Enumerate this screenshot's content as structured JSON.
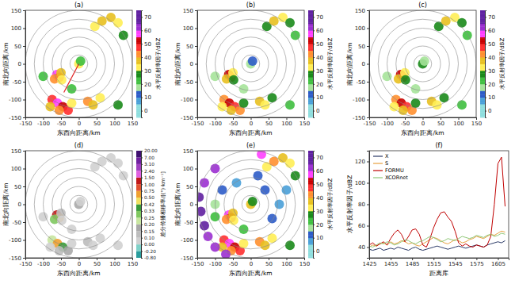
{
  "chart_data": [
    {
      "type": "ppi",
      "title": "(a)",
      "x_label": "东西向距离/km",
      "y_label": "南北向距离/km",
      "xlim": [
        -150,
        150
      ],
      "ylim": [
        -150,
        150
      ],
      "xticks": [
        -150,
        -100,
        -50,
        0,
        50,
        100,
        150
      ],
      "yticks": [
        -150,
        -100,
        -50,
        0,
        50,
        100,
        150
      ],
      "rings": [
        25,
        50,
        75,
        100,
        125,
        150
      ],
      "cells": {
        "x": [
          -62,
          -55,
          -68,
          -50,
          -48,
          -75,
          -60,
          -45,
          -30,
          -55,
          -80,
          -20,
          25,
          40,
          60,
          110,
          45,
          65,
          90,
          110,
          125,
          0,
          5,
          -20,
          -100
        ],
        "y": [
          -30,
          -38,
          -42,
          -25,
          -45,
          -100,
          -110,
          -120,
          -130,
          -130,
          -120,
          -110,
          -105,
          -115,
          -95,
          -115,
          105,
          120,
          130,
          115,
          80,
          0,
          8,
          -70,
          -35
        ],
        "values": [
          55,
          48,
          40,
          35,
          30,
          45,
          55,
          50,
          45,
          40,
          35,
          30,
          40,
          35,
          30,
          25,
          30,
          38,
          35,
          30,
          25,
          30,
          20,
          20,
          20
        ]
      },
      "profile_line": {
        "x": [
          0,
          -42
        ],
        "y": [
          0,
          -80
        ],
        "color": "#e02020"
      },
      "colorbar": {
        "label": "水平反射率因子/dBZ",
        "range": [
          -5,
          75
        ],
        "ticks": [
          0,
          10,
          20,
          30,
          40,
          50,
          60,
          70
        ]
      }
    },
    {
      "type": "ppi",
      "title": "(b)",
      "x_label": "东西向距离/km",
      "y_label": "南北向距离/km",
      "xlim": [
        -150,
        150
      ],
      "ylim": [
        -150,
        150
      ],
      "xticks": [
        -150,
        -100,
        -50,
        0,
        50,
        100,
        150
      ],
      "yticks": [
        -150,
        -100,
        -50,
        0,
        50,
        100,
        150
      ],
      "rings": [
        25,
        50,
        75,
        100,
        125,
        150
      ],
      "cells": {
        "x": [
          -62,
          -55,
          -68,
          -50,
          -48,
          -75,
          -60,
          -45,
          -30,
          -55,
          -80,
          -20,
          25,
          40,
          60,
          110,
          45,
          65,
          90,
          110,
          125,
          0,
          5,
          -20,
          -100
        ],
        "y": [
          -30,
          -38,
          -42,
          -25,
          -45,
          -100,
          -110,
          -120,
          -130,
          -130,
          -120,
          -110,
          -105,
          -115,
          -95,
          -115,
          105,
          120,
          130,
          115,
          80,
          0,
          8,
          -70,
          -35
        ],
        "values": [
          52,
          46,
          38,
          33,
          28,
          43,
          52,
          48,
          42,
          38,
          33,
          28,
          38,
          33,
          28,
          22,
          28,
          36,
          33,
          28,
          22,
          18,
          12,
          18,
          18
        ]
      },
      "colorbar": {
        "label": "水平反射率因子/dBZ",
        "range": [
          -5,
          75
        ],
        "ticks": [
          0,
          10,
          20,
          30,
          40,
          50,
          60,
          70
        ]
      }
    },
    {
      "type": "ppi",
      "title": "(c)",
      "x_label": "东西向距离/km",
      "y_label": "南北向距离/km",
      "xlim": [
        -150,
        150
      ],
      "ylim": [
        -150,
        150
      ],
      "xticks": [
        -150,
        -100,
        -50,
        0,
        50,
        100,
        150
      ],
      "yticks": [
        -150,
        -100,
        -50,
        0,
        50,
        100,
        150
      ],
      "rings": [
        25,
        50,
        75,
        100,
        125,
        150
      ],
      "cells": {
        "x": [
          -62,
          -55,
          -68,
          -50,
          -48,
          -75,
          -60,
          -45,
          -30,
          -55,
          -80,
          -20,
          25,
          40,
          60,
          110,
          45,
          65,
          90,
          110,
          125,
          0,
          5,
          -20,
          -100
        ],
        "y": [
          -30,
          -38,
          -42,
          -25,
          -45,
          -100,
          -110,
          -120,
          -130,
          -130,
          -120,
          -110,
          -105,
          -115,
          -95,
          -115,
          105,
          120,
          130,
          115,
          80,
          0,
          8,
          -70,
          -35
        ],
        "values": [
          53,
          47,
          39,
          34,
          29,
          44,
          54,
          49,
          44,
          39,
          34,
          29,
          39,
          34,
          29,
          24,
          29,
          37,
          34,
          29,
          24,
          25,
          15,
          19,
          19
        ]
      },
      "colorbar": {
        "label": "水平反射率因子/dBZ",
        "range": [
          -5,
          75
        ],
        "ticks": [
          0,
          10,
          20,
          30,
          40,
          50,
          60,
          70
        ]
      }
    },
    {
      "type": "ppi",
      "title": "(d)",
      "x_label": "东西向距离/km",
      "y_label": "南北向距离/km",
      "xlim": [
        -150,
        150
      ],
      "ylim": [
        -150,
        150
      ],
      "xticks": [
        -150,
        -100,
        -50,
        0,
        50,
        100,
        150
      ],
      "yticks": [
        -150,
        -100,
        -50,
        0,
        50,
        100,
        150
      ],
      "rings": [
        25,
        50,
        75,
        100,
        125,
        150
      ],
      "cells": {
        "x": [
          -62,
          -55,
          -68,
          -50,
          -48,
          -75,
          -60,
          -45,
          -30,
          -55,
          -80,
          -20,
          25,
          40,
          60,
          110,
          45,
          65,
          90,
          110,
          125,
          0,
          5,
          -20,
          -100
        ],
        "y": [
          -30,
          -38,
          -42,
          -25,
          -45,
          -100,
          -110,
          -120,
          -130,
          -130,
          -120,
          -110,
          -105,
          -115,
          -95,
          -115,
          105,
          120,
          130,
          115,
          80,
          0,
          8,
          -70,
          -35
        ],
        "values": [
          1.2,
          0.6,
          0.3,
          0.12,
          0.08,
          0.2,
          0.55,
          0.35,
          0.18,
          0.1,
          0.06,
          0.04,
          0.12,
          0.08,
          0.05,
          0.02,
          0.06,
          0.09,
          0.07,
          0.05,
          0.03,
          0.15,
          0.01,
          0.04,
          0.03
        ]
      },
      "colorbar": {
        "label": "差分传播相移率/[(°)·km⁻¹]",
        "ticks": [
          {
            "value": -0.8,
            "label": "-0.80"
          },
          {
            "value": -0.2,
            "label": "-0.20"
          },
          {
            "value": 0,
            "label": "0.00"
          },
          {
            "value": 0.1,
            "label": "0.10"
          },
          {
            "value": 0.15,
            "label": "0.15"
          },
          {
            "value": 0.2,
            "label": "0.20"
          },
          {
            "value": 0.25,
            "label": "0.25"
          },
          {
            "value": 0.33,
            "label": "0.33"
          },
          {
            "value": 0.42,
            "label": "0.42"
          },
          {
            "value": 0.5,
            "label": "0.50"
          },
          {
            "value": 0.75,
            "label": "0.75"
          },
          {
            "value": 1,
            "label": "1.00"
          },
          {
            "value": 1.5,
            "label": "1.50"
          },
          {
            "value": 2.4,
            "label": "2.40"
          },
          {
            "value": 3.1,
            "label": "3.10"
          },
          {
            "value": 7,
            "label": "7.00"
          },
          {
            "value": 20,
            "label": "20.00"
          }
        ]
      }
    },
    {
      "type": "ppi",
      "title": "(e)",
      "x_label": "东西向距离/km",
      "y_label": "南北向距离/km",
      "xlim": [
        -150,
        150
      ],
      "ylim": [
        -150,
        150
      ],
      "xticks": [
        -150,
        -100,
        -50,
        0,
        50,
        100,
        150
      ],
      "yticks": [
        -150,
        -100,
        -50,
        0,
        50,
        100,
        150
      ],
      "rings": [
        25,
        50,
        75,
        100,
        125,
        150
      ],
      "cells": {
        "x": [
          -62,
          -55,
          -68,
          -50,
          -48,
          -75,
          -60,
          -45,
          -30,
          -55,
          -80,
          -20,
          25,
          40,
          60,
          110,
          45,
          65,
          90,
          110,
          125,
          0,
          5,
          -20,
          -100,
          -140,
          -130,
          -120,
          -100,
          -70,
          -145,
          -130,
          -100,
          30,
          -80,
          -40,
          40,
          80,
          60,
          -100,
          20,
          100
        ],
        "y": [
          -30,
          -38,
          -42,
          -25,
          -45,
          -100,
          -110,
          -120,
          -130,
          -130,
          -120,
          -110,
          -105,
          -115,
          -95,
          -115,
          105,
          120,
          130,
          115,
          80,
          0,
          8,
          -70,
          -35,
          -20,
          -60,
          -90,
          -120,
          -140,
          20,
          60,
          100,
          140,
          40,
          60,
          40,
          0,
          -40,
          0,
          80,
          40
        ],
        "values": [
          58,
          50,
          42,
          36,
          32,
          48,
          58,
          52,
          46,
          42,
          36,
          32,
          42,
          36,
          32,
          28,
          32,
          40,
          36,
          32,
          28,
          35,
          25,
          22,
          22,
          65,
          65,
          60,
          62,
          60,
          65,
          60,
          60,
          55,
          10,
          5,
          10,
          5,
          10,
          15,
          10,
          5
        ]
      },
      "colorbar": {
        "label": "水平反射率因子/dBZ",
        "range": [
          -5,
          75
        ],
        "ticks": [
          0,
          10,
          20,
          30,
          40,
          50,
          60,
          70
        ]
      }
    },
    {
      "type": "line",
      "title": "(f)",
      "x_label": "距离库",
      "y_label": "水平反射率因子/dBZ",
      "xlim": [
        1425,
        1620
      ],
      "ylim": [
        30,
        130
      ],
      "xticks": [
        1425,
        1455,
        1485,
        1515,
        1545,
        1575,
        1605
      ],
      "yticks": [
        40,
        60,
        80,
        100,
        120
      ],
      "legend": "upper left",
      "x": [
        1425,
        1430,
        1435,
        1440,
        1445,
        1450,
        1455,
        1460,
        1465,
        1470,
        1475,
        1480,
        1485,
        1490,
        1495,
        1500,
        1505,
        1510,
        1515,
        1520,
        1525,
        1530,
        1535,
        1540,
        1545,
        1550,
        1555,
        1560,
        1565,
        1570,
        1575,
        1580,
        1585,
        1590,
        1595,
        1600,
        1605,
        1610,
        1615
      ],
      "series": [
        {
          "name": "X",
          "color": "#2b3a67",
          "values": [
            38,
            37,
            38,
            39,
            37,
            38,
            39,
            38,
            40,
            39,
            38,
            37,
            39,
            40,
            38,
            37,
            38,
            39,
            40,
            41,
            40,
            39,
            38,
            39,
            40,
            41,
            40,
            39,
            40,
            41,
            42,
            41,
            40,
            42,
            43,
            44,
            45,
            44,
            46
          ]
        },
        {
          "name": "S",
          "color": "#e8a040",
          "values": [
            40,
            42,
            41,
            43,
            44,
            42,
            45,
            43,
            44,
            46,
            45,
            43,
            44,
            42,
            41,
            43,
            45,
            47,
            49,
            48,
            46,
            44,
            43,
            45,
            47,
            46,
            44,
            45,
            47,
            48,
            50,
            49,
            48,
            50,
            52,
            51,
            53,
            55,
            54
          ]
        },
        {
          "name": "FORMU",
          "color": "#c00000",
          "values": [
            42,
            44,
            41,
            43,
            45,
            42,
            48,
            53,
            56,
            52,
            45,
            50,
            56,
            57,
            52,
            42,
            40,
            48,
            58,
            66,
            72,
            73,
            68,
            64,
            55,
            44,
            41,
            43,
            41,
            40,
            42,
            41,
            40,
            42,
            50,
            80,
            118,
            124,
            78
          ]
        },
        {
          "name": "XCORnet",
          "color": "#90c878",
          "values": [
            41,
            40,
            42,
            44,
            43,
            45,
            44,
            42,
            43,
            45,
            47,
            46,
            44,
            43,
            45,
            46,
            48,
            50,
            49,
            47,
            45,
            46,
            48,
            47,
            46,
            48,
            50,
            49,
            48,
            49,
            51,
            50,
            49,
            51,
            52,
            50,
            51,
            53,
            52
          ]
        }
      ]
    }
  ]
}
